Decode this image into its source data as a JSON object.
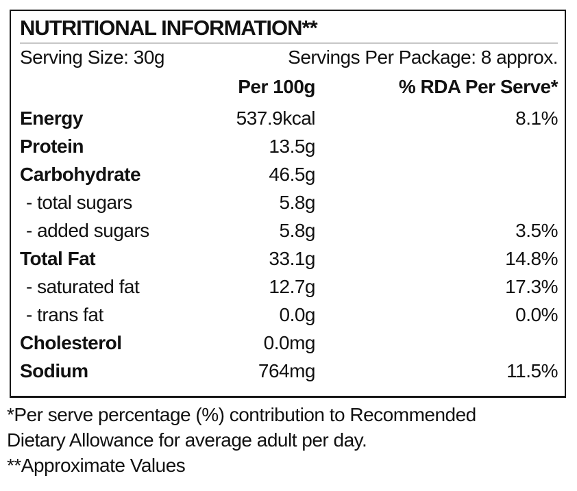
{
  "label": {
    "title": "NUTRITIONAL INFORMATION**",
    "serving_size": "Serving Size: 30g",
    "servings_per_package": "Servings Per Package: 8 approx.",
    "columns": {
      "per_100g": "Per 100g",
      "rda_per_serve": "% RDA Per Serve*"
    },
    "rows": [
      {
        "name": "Energy",
        "bold": true,
        "sub": false,
        "per_100g": "537.9kcal",
        "rda": "8.1%"
      },
      {
        "name": "Protein",
        "bold": true,
        "sub": false,
        "per_100g": "13.5g",
        "rda": ""
      },
      {
        "name": "Carbohydrate",
        "bold": true,
        "sub": false,
        "per_100g": "46.5g",
        "rda": ""
      },
      {
        "name": "- total sugars",
        "bold": false,
        "sub": true,
        "per_100g": "5.8g",
        "rda": ""
      },
      {
        "name": "- added sugars",
        "bold": false,
        "sub": true,
        "per_100g": "5.8g",
        "rda": "3.5%"
      },
      {
        "name": "Total Fat",
        "bold": true,
        "sub": false,
        "per_100g": "33.1g",
        "rda": "14.8%"
      },
      {
        "name": "- saturated fat",
        "bold": false,
        "sub": true,
        "per_100g": "12.7g",
        "rda": "17.3%"
      },
      {
        "name": "- trans fat",
        "bold": false,
        "sub": true,
        "per_100g": "0.0g",
        "rda": "0.0%"
      },
      {
        "name": "Cholesterol",
        "bold": true,
        "sub": false,
        "per_100g": "0.0mg",
        "rda": ""
      },
      {
        "name": "Sodium",
        "bold": true,
        "sub": false,
        "per_100g": "764mg",
        "rda": "11.5%"
      }
    ],
    "footnotes": [
      "*Per serve percentage (%) contribution to Recommended",
      "Dietary Allowance for average adult per day.",
      "**Approximate Values"
    ],
    "colors": {
      "text": "#111111",
      "border": "#161616",
      "divider": "#c6c6c6",
      "background": "#ffffff"
    }
  }
}
